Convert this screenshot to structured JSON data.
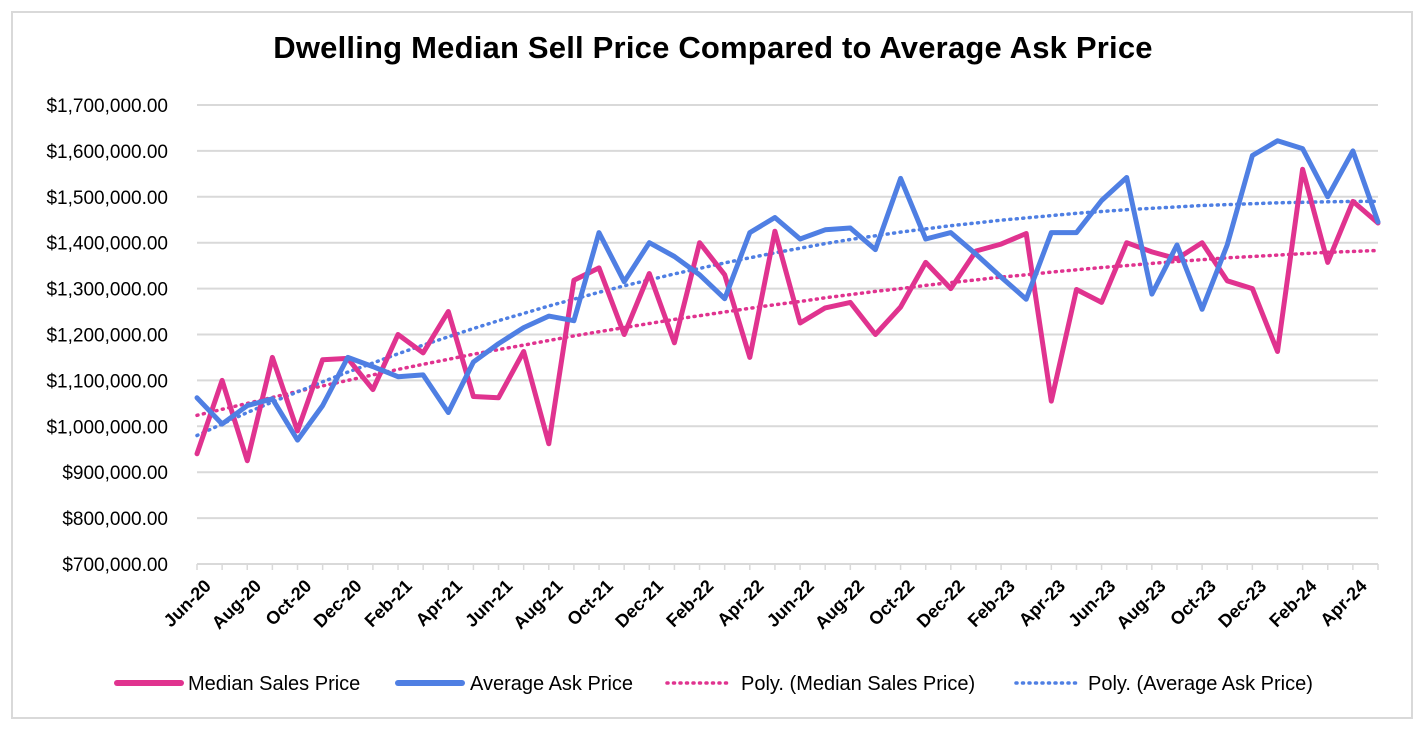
{
  "chart_data": {
    "type": "line",
    "title": "Dwelling Median Sell Price Compared to Average Ask Price",
    "xlabel": "",
    "ylabel": "",
    "ylim": [
      700000,
      1700000
    ],
    "grid": true,
    "legend_position": "bottom",
    "y_ticks": [
      "$700,000.00",
      "$800,000.00",
      "$900,000.00",
      "$1,000,000.00",
      "$1,100,000.00",
      "$1,200,000.00",
      "$1,300,000.00",
      "$1,400,000.00",
      "$1,500,000.00",
      "$1,600,000.00",
      "$1,700,000.00"
    ],
    "y_tick_values": [
      700000,
      800000,
      900000,
      1000000,
      1100000,
      1200000,
      1300000,
      1400000,
      1500000,
      1600000,
      1700000
    ],
    "categories": [
      "Jun-20",
      "Jul-20",
      "Aug-20",
      "Sep-20",
      "Oct-20",
      "Nov-20",
      "Dec-20",
      "Jan-21",
      "Feb-21",
      "Mar-21",
      "Apr-21",
      "May-21",
      "Jun-21",
      "Jul-21",
      "Aug-21",
      "Sep-21",
      "Oct-21",
      "Nov-21",
      "Dec-21",
      "Jan-22",
      "Feb-22",
      "Mar-22",
      "Apr-22",
      "May-22",
      "Jun-22",
      "Jul-22",
      "Aug-22",
      "Sep-22",
      "Oct-22",
      "Nov-22",
      "Dec-22",
      "Jan-23",
      "Feb-23",
      "Mar-23",
      "Apr-23",
      "May-23",
      "Jun-23",
      "Jul-23",
      "Aug-23",
      "Sep-23",
      "Oct-23",
      "Nov-23",
      "Dec-23",
      "Jan-24",
      "Feb-24",
      "Mar-24",
      "Apr-24",
      "May-24"
    ],
    "x_tick_labels": [
      "Jun-20",
      "Aug-20",
      "Oct-20",
      "Dec-20",
      "Feb-21",
      "Apr-21",
      "Jun-21",
      "Aug-21",
      "Oct-21",
      "Dec-21",
      "Feb-22",
      "Apr-22",
      "Jun-22",
      "Aug-22",
      "Oct-22",
      "Dec-22",
      "Feb-23",
      "Apr-23",
      "Jun-23",
      "Aug-23",
      "Oct-23",
      "Dec-23",
      "Feb-24",
      "Apr-24"
    ],
    "series": [
      {
        "name": "Median Sales Price",
        "color": "#e0338f",
        "values": [
          940000,
          1100000,
          925000,
          1150000,
          990000,
          1145000,
          1148000,
          1080000,
          1200000,
          1160000,
          1250000,
          1065000,
          1062000,
          1163000,
          962000,
          1318000,
          1345000,
          1200000,
          1333000,
          1182000,
          1400000,
          1330000,
          1150000,
          1425000,
          1225000,
          1258000,
          1270000,
          1200000,
          1260000,
          1357000,
          1300000,
          1382000,
          1397000,
          1420000,
          1055000,
          1298000,
          1270000,
          1400000,
          1380000,
          1365000,
          1400000,
          1317000,
          1300000,
          1163000,
          1560000,
          1357000,
          1490000,
          1443000
        ]
      },
      {
        "name": "Average Ask Price",
        "color": "#4f7fe3",
        "values": [
          1062000,
          1005000,
          1045000,
          1060000,
          970000,
          1045000,
          1150000,
          1130000,
          1108000,
          1112000,
          1030000,
          1140000,
          1180000,
          1215000,
          1240000,
          1230000,
          1422000,
          1315000,
          1400000,
          1370000,
          1330000,
          1278000,
          1422000,
          1455000,
          1408000,
          1428000,
          1432000,
          1385000,
          1540000,
          1408000,
          1422000,
          1375000,
          1325000,
          1277000,
          1422000,
          1422000,
          1492000,
          1542000,
          1288000,
          1395000,
          1255000,
          1395000,
          1590000,
          1622000,
          1605000,
          1500000,
          1600000,
          1445000
        ]
      },
      {
        "name": "Poly. (Median Sales Price)",
        "color": "#e0338f",
        "dashed": true,
        "values": [
          1024000,
          1037000,
          1050000,
          1063000,
          1076000,
          1088000,
          1100000,
          1112000,
          1124000,
          1135000,
          1146000,
          1157000,
          1167000,
          1177000,
          1187000,
          1197000,
          1206000,
          1215000,
          1224000,
          1233000,
          1241000,
          1249000,
          1257000,
          1265000,
          1272000,
          1280000,
          1287000,
          1294000,
          1300000,
          1307000,
          1313000,
          1319000,
          1325000,
          1330000,
          1336000,
          1341000,
          1346000,
          1350000,
          1355000,
          1359000,
          1363000,
          1367000,
          1370000,
          1373000,
          1376000,
          1379000,
          1381000,
          1383000
        ]
      },
      {
        "name": "Poly. (Average Ask Price)",
        "color": "#4f7fe3",
        "dashed": true,
        "values": [
          980000,
          1005000,
          1030000,
          1053000,
          1075000,
          1097000,
          1118000,
          1138000,
          1158000,
          1177000,
          1195000,
          1213000,
          1230000,
          1246000,
          1262000,
          1277000,
          1292000,
          1306000,
          1319000,
          1332000,
          1344000,
          1356000,
          1367000,
          1378000,
          1388000,
          1398000,
          1407000,
          1415000,
          1423000,
          1430000,
          1437000,
          1443000,
          1449000,
          1454000,
          1459000,
          1464000,
          1468000,
          1472000,
          1475000,
          1478000,
          1481000,
          1483000,
          1485000,
          1487000,
          1488000,
          1489000,
          1490000,
          1490000
        ]
      }
    ]
  }
}
